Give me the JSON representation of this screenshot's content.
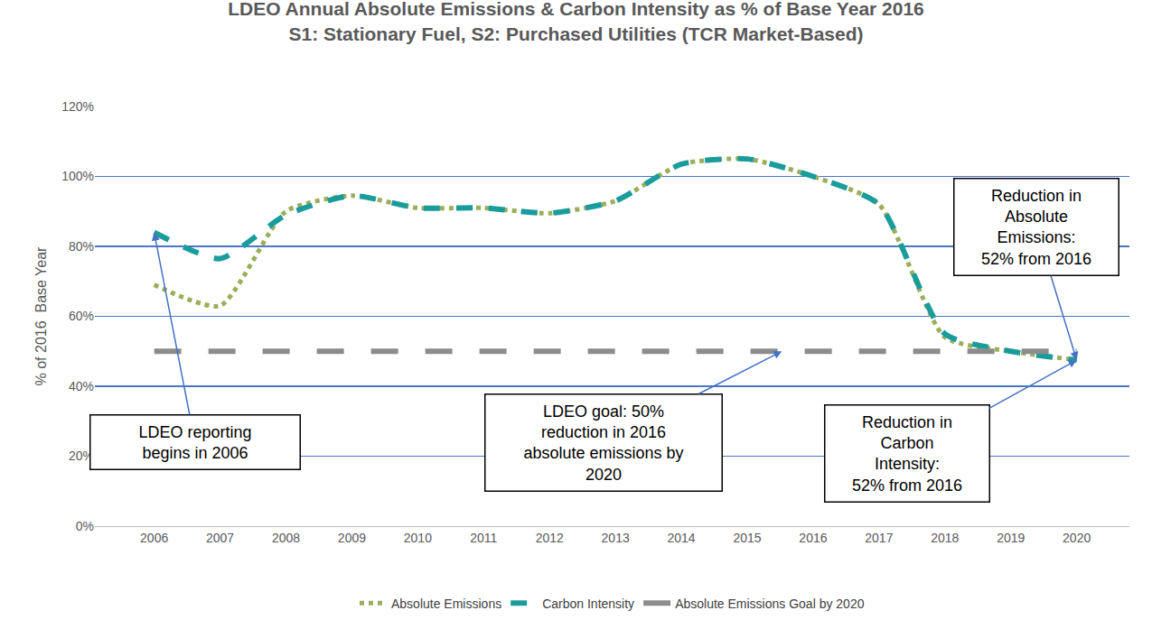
{
  "chart_data": {
    "type": "line",
    "title": "LDEO Annual Absolute Emissions & Carbon Intensity as % of Base Year 2016",
    "subtitle": "S1: Stationary Fuel, S2: Purchased Utilities (TCR Market-Based)",
    "y_label": "% of 2016  Base Year",
    "x": [
      2006,
      2007,
      2008,
      2009,
      2010,
      2011,
      2012,
      2013,
      2014,
      2015,
      2016,
      2017,
      2018,
      2019,
      2020
    ],
    "series": [
      {
        "name": "Absolute Emissions",
        "color": "#9bae5a",
        "line_style": "dotted",
        "values": [
          69,
          63,
          90,
          94.5,
          91,
          91,
          89.5,
          93,
          103.5,
          105,
          100,
          92,
          54,
          50,
          47.5
        ]
      },
      {
        "name": "Carbon Intensity",
        "color": "#1a9c9c",
        "line_style": "dashed",
        "values": [
          84,
          76.5,
          89,
          94.5,
          91,
          91,
          89.5,
          93,
          103.5,
          105,
          100,
          92,
          55,
          50,
          47.5
        ]
      },
      {
        "name": "Absolute Emissions Goal by 2020",
        "color": "#8c8c8c",
        "line_style": "longdash",
        "values": [
          50,
          50,
          50,
          50,
          50,
          50,
          50,
          50,
          50,
          50,
          50,
          50,
          50,
          50,
          50
        ]
      }
    ],
    "xlim": [
      2005.1,
      2020.8
    ],
    "xticks": [
      2006,
      2007,
      2008,
      2009,
      2010,
      2011,
      2012,
      2013,
      2014,
      2015,
      2016,
      2017,
      2018,
      2019,
      2020
    ],
    "ylim": [
      0,
      120
    ],
    "yticks": [
      {
        "value": 0,
        "label": "0%"
      },
      {
        "value": 20,
        "label": "20%"
      },
      {
        "value": 40,
        "label": "40%"
      },
      {
        "value": 60,
        "label": "60%"
      },
      {
        "value": 80,
        "label": "80%"
      },
      {
        "value": 100,
        "label": "100%"
      },
      {
        "value": 120,
        "label": "120%"
      }
    ],
    "grid": true,
    "legend": "bottom",
    "annotations": [
      {
        "text": "LDEO reporting\nbegins in 2006"
      },
      {
        "text": "LDEO goal: 50%\nreduction in 2016\nabsolute emissions by\n2020"
      },
      {
        "text": "Reduction in\nAbsolute\nEmissions:\n52% from 2016"
      },
      {
        "text": "Reduction in\nCarbon\nIntensity:\n52% from 2016"
      }
    ]
  }
}
